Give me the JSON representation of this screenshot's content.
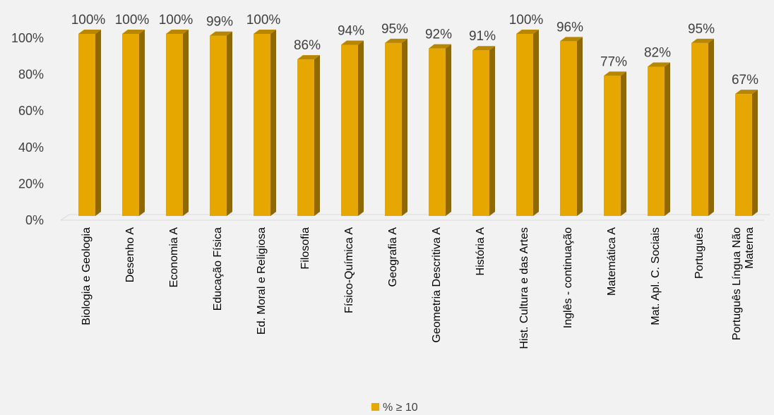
{
  "chart_data": {
    "type": "bar",
    "categories": [
      "Biologia e Geologia",
      "Desenho A",
      "Economia A",
      "Educação Física",
      "Ed. Moral e Religiosa",
      "Filosofia",
      "Físico-Química A",
      "Geografia A",
      "Geometria Descritiva A",
      "História A",
      "Hist. Cultura e das Artes",
      "Inglês - continuação",
      "Matemática A",
      "Mat. Apl. C. Sociais",
      "Português",
      "Português Língua Não Materna"
    ],
    "series": [
      {
        "name": "% ≥ 10",
        "values": [
          100,
          100,
          100,
          99,
          100,
          86,
          94,
          95,
          92,
          91,
          100,
          96,
          77,
          82,
          95,
          67
        ],
        "color": "#e6a800"
      }
    ],
    "data_labels": [
      "100%",
      "100%",
      "100%",
      "99%",
      "100%",
      "86%",
      "94%",
      "95%",
      "92%",
      "91%",
      "100%",
      "96%",
      "77%",
      "82%",
      "95%",
      "67%"
    ],
    "y_ticks": [
      "0%",
      "20%",
      "40%",
      "60%",
      "80%",
      "100%"
    ],
    "ylim": [
      0,
      100
    ],
    "grid": false,
    "legend_position": "bottom",
    "style": "3d-bar"
  }
}
